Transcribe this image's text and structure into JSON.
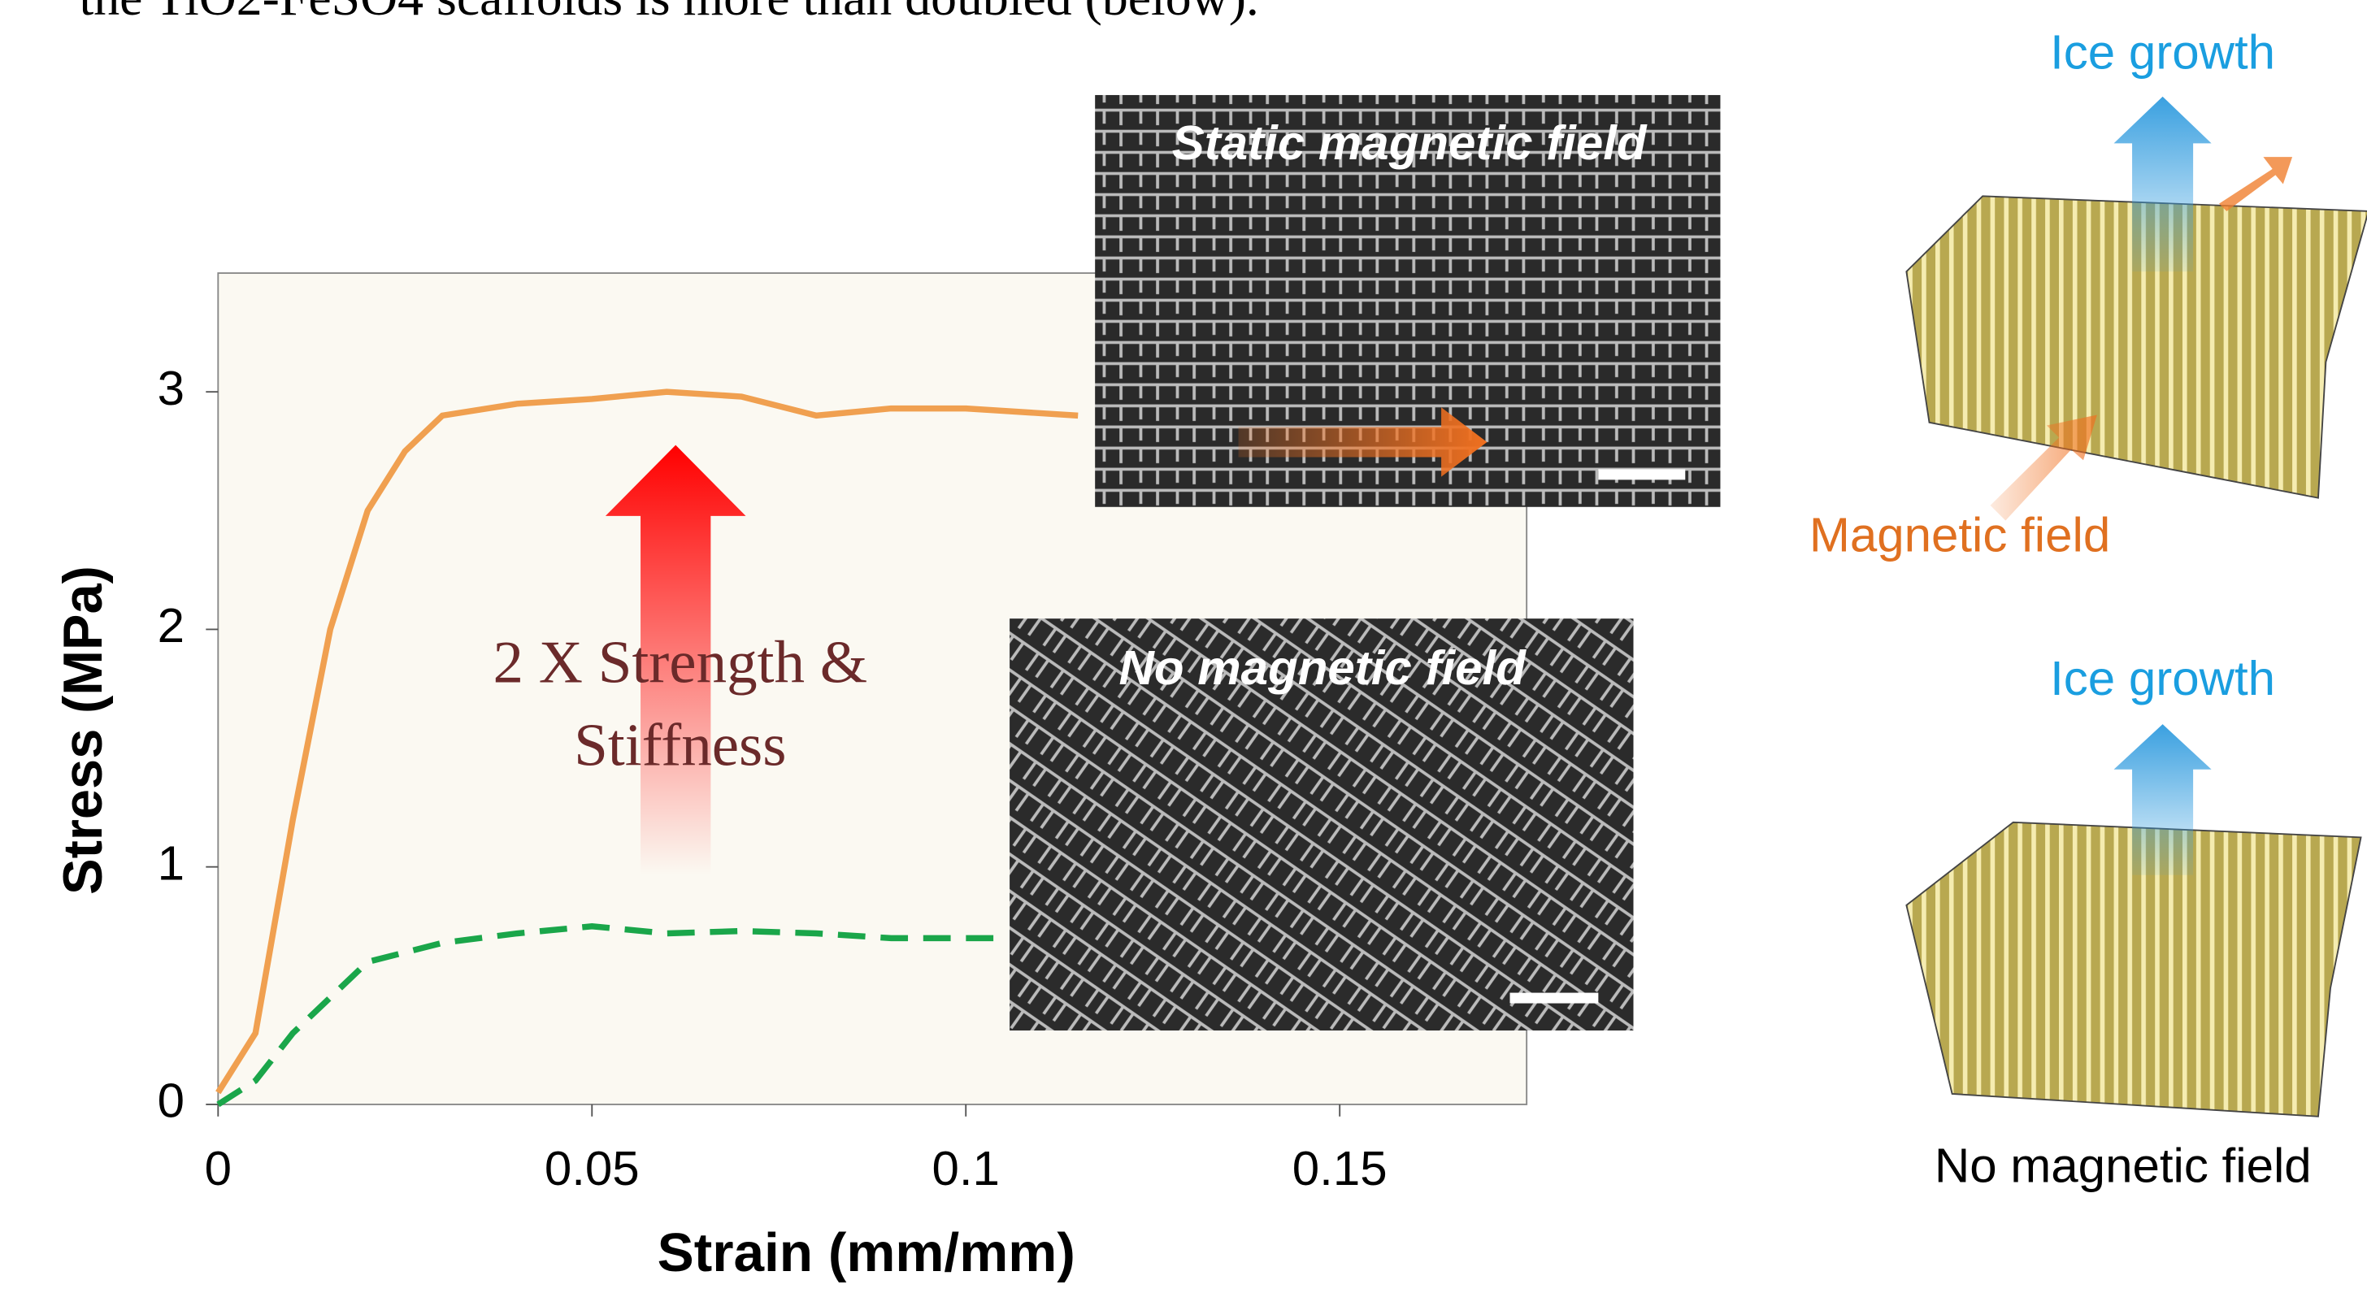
{
  "chart_data": {
    "type": "line",
    "x_label": "Strain (mm/mm)",
    "y_label": "Stress (MPa)",
    "xlim": [
      0,
      0.175
    ],
    "ylim": [
      0,
      3.5
    ],
    "xticks": [
      0,
      0.05,
      0.1,
      0.15
    ],
    "yticks": [
      0,
      1,
      2,
      3
    ],
    "series": [
      {
        "color": "#f0a050",
        "dashed": false,
        "x": [
          0,
          0.005,
          0.01,
          0.015,
          0.02,
          0.025,
          0.03,
          0.04,
          0.05,
          0.06,
          0.07,
          0.08,
          0.09,
          0.1,
          0.115
        ],
        "values": [
          0.05,
          0.3,
          1.2,
          2.0,
          2.5,
          2.75,
          2.9,
          2.95,
          2.97,
          3.0,
          2.98,
          2.9,
          2.93,
          2.93,
          2.9
        ]
      },
      {
        "color": "#1aa64a",
        "dashed": true,
        "x": [
          0,
          0.005,
          0.01,
          0.02,
          0.03,
          0.04,
          0.05,
          0.06,
          0.07,
          0.08,
          0.09,
          0.105
        ],
        "values": [
          0,
          0.1,
          0.3,
          0.6,
          0.68,
          0.72,
          0.75,
          0.72,
          0.73,
          0.72,
          0.7,
          0.7
        ]
      }
    ],
    "annotation": [
      "2 X Strength &",
      "Stiffness"
    ]
  },
  "slide": {
    "caption": "the TiO2-FeSO4 scaffolds is more than doubled (below).",
    "insets": [
      "Static magnetic field",
      "No magnetic field"
    ],
    "diagram": {
      "top_arrow": "Ice growth",
      "field_label": "Magnetic field",
      "bottom_arrow": "Ice growth",
      "bottom_label": "No magnetic field"
    }
  }
}
